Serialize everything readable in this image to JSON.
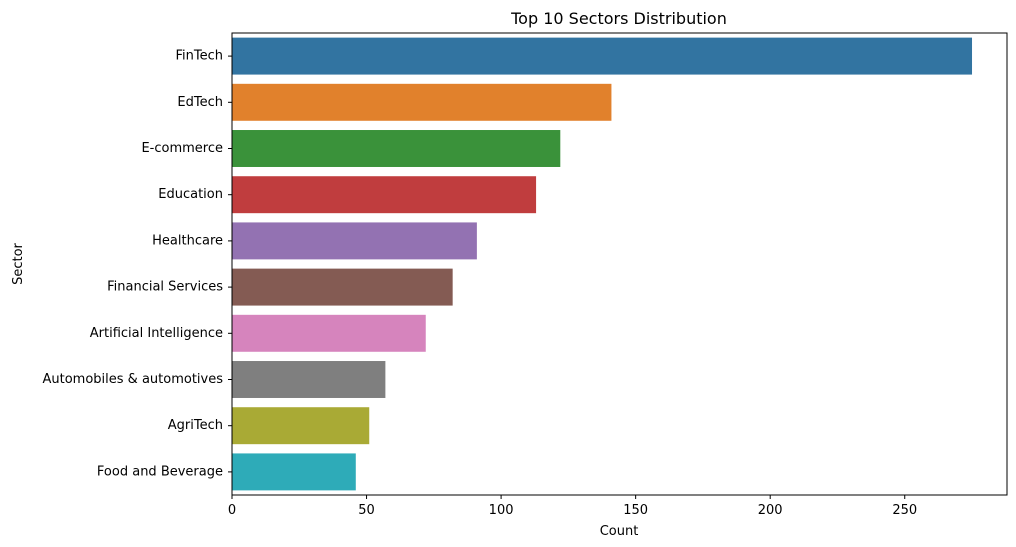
{
  "chart_data": {
    "type": "bar",
    "orientation": "horizontal",
    "title": "Top 10 Sectors Distribution",
    "xlabel": "Count",
    "ylabel": "Sector",
    "categories": [
      "FinTech",
      "EdTech",
      "E-commerce",
      "Education",
      "Healthcare",
      "Financial Services",
      "Artificial Intelligence",
      "Automobiles & automotives",
      "AgriTech",
      "Food and Beverage"
    ],
    "values": [
      275,
      141,
      122,
      113,
      91,
      82,
      72,
      57,
      51,
      46
    ],
    "colors": [
      "#3274a1",
      "#e1812c",
      "#3a923a",
      "#c03d3e",
      "#9372b2",
      "#845b53",
      "#d684bd",
      "#7f7f7f",
      "#a9aa35",
      "#2eabb8"
    ],
    "xlim": [
      0,
      288
    ],
    "xticks": [
      0,
      50,
      100,
      150,
      200,
      250
    ],
    "grid": false,
    "legend": "none"
  }
}
